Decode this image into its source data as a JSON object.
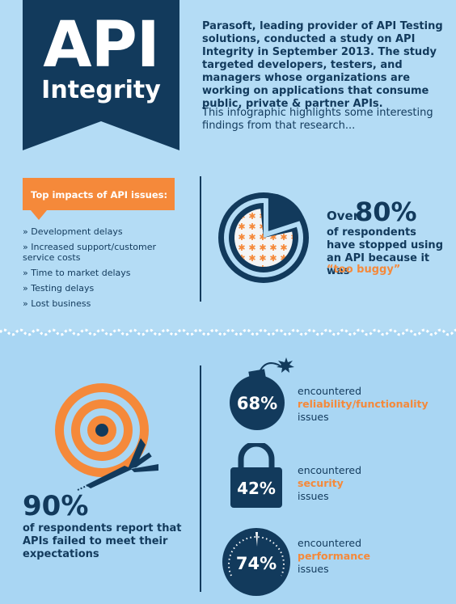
{
  "header": {
    "title": "API",
    "subtitle": "Integrity",
    "intro_bold": "Parasoft, leading provider of API Testing solutions, conducted a study on API Integrity in September 2013. The study targeted developers, testers, and managers whose organizations are working on applications that consume public, private & partner APIs.",
    "intro": "This infographic highlights some interesting findings from that research..."
  },
  "impacts": {
    "title": "Top impacts of API issues:",
    "items": [
      "» Development delays",
      "» Increased support/customer service costs",
      "» Time to market delays",
      "» Testing delays",
      "» Lost business"
    ]
  },
  "stat_80": {
    "prefix": "Over",
    "value": "80%",
    "text": "of respondents have stopped using an API because it was",
    "highlight": "“too buggy”",
    "pie_fraction": 0.8
  },
  "stat_90": {
    "value": "90%",
    "text": "of respondents report that APIs failed to meet their expectations"
  },
  "issues": [
    {
      "value": "68%",
      "pre": "encountered",
      "highlight": "reliability/functionality",
      "post": "issues",
      "icon": "bomb-icon"
    },
    {
      "value": "42%",
      "pre": "encountered",
      "highlight": "security",
      "post": "issues",
      "icon": "padlock-icon"
    },
    {
      "value": "74%",
      "pre": "encountered",
      "highlight": "performance",
      "post": "issues",
      "icon": "speedometer-icon"
    }
  ],
  "colors": {
    "navy": "#123a5c",
    "orange": "#f5893a",
    "light_blue": "#b4dcf5"
  }
}
